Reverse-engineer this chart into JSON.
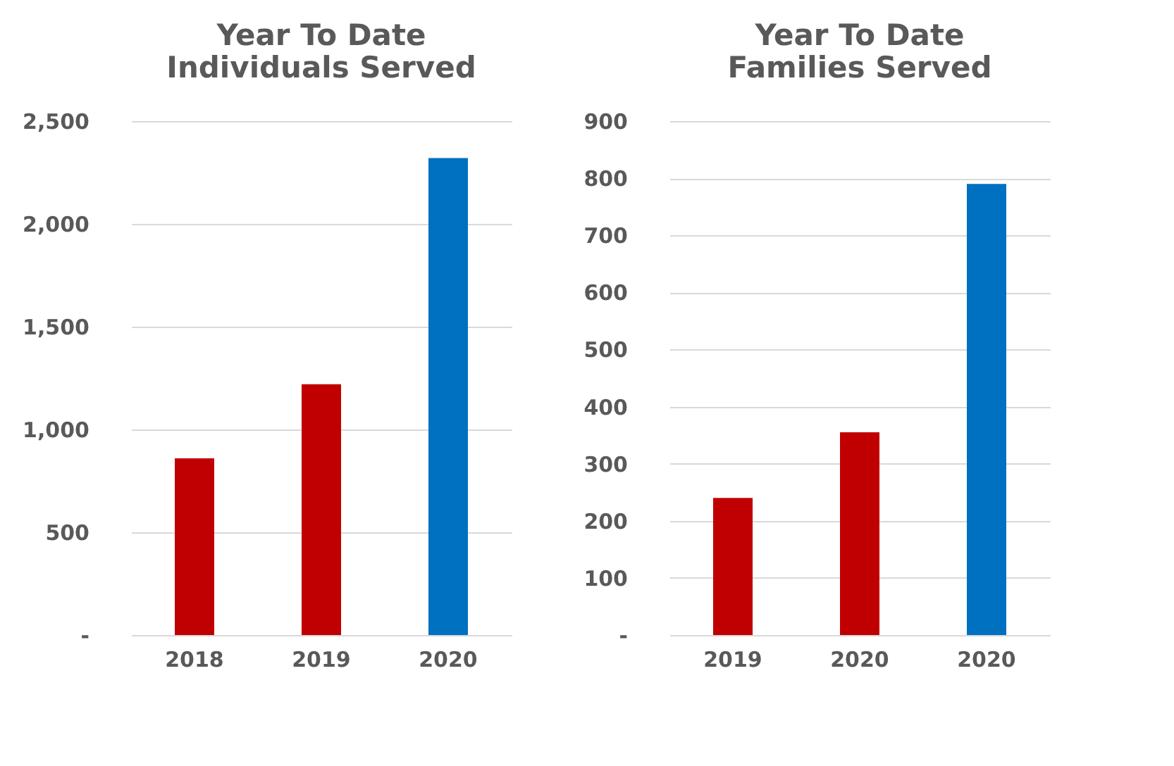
{
  "chart_data": [
    {
      "type": "bar",
      "title": "Year To Date\nIndividuals Served",
      "categories": [
        "2018",
        "2019",
        "2020"
      ],
      "values": [
        860,
        1220,
        2320
      ],
      "colors": [
        "#c00000",
        "#c00000",
        "#0070c0"
      ],
      "ylim": [
        0,
        2500
      ],
      "yticks": [
        {
          "value": 0,
          "label": "-"
        },
        {
          "value": 500,
          "label": "500"
        },
        {
          "value": 1000,
          "label": "1,000"
        },
        {
          "value": 1500,
          "label": "1,500"
        },
        {
          "value": 2000,
          "label": "2,000"
        },
        {
          "value": 2500,
          "label": "2,500"
        }
      ],
      "grid": "y"
    },
    {
      "type": "bar",
      "title": "Year To Date\nFamilies Served",
      "categories": [
        "2019",
        "2020",
        "2020"
      ],
      "values": [
        240,
        355,
        790
      ],
      "colors": [
        "#c00000",
        "#c00000",
        "#0070c0"
      ],
      "ylim": [
        0,
        900
      ],
      "yticks": [
        {
          "value": 0,
          "label": "-"
        },
        100,
        200,
        300,
        400,
        500,
        600,
        700,
        800,
        900
      ],
      "grid": "y"
    }
  ]
}
